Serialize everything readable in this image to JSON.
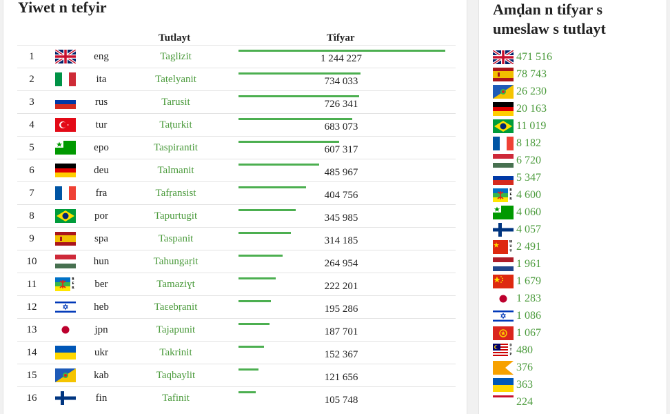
{
  "main": {
    "title": "Yiwet n tefyir",
    "headers": {
      "language": "Tutlayt",
      "count": "Tifyar"
    },
    "rows": [
      {
        "rank": "1",
        "flag": "uk-flag",
        "code": "eng",
        "name": "Taglizit",
        "count": "1 244 227",
        "value": 1244227
      },
      {
        "rank": "2",
        "flag": "italy-flag",
        "code": "ita",
        "name": "Taṭelyanit",
        "count": "734 033",
        "value": 734033
      },
      {
        "rank": "3",
        "flag": "russia-flag",
        "code": "rus",
        "name": "Tarusit",
        "count": "726 341",
        "value": 726341
      },
      {
        "rank": "4",
        "flag": "turkey-flag",
        "code": "tur",
        "name": "Taṭurkit",
        "count": "683 073",
        "value": 683073
      },
      {
        "rank": "5",
        "flag": "esperanto-flag",
        "code": "epo",
        "name": "Taspirantit",
        "count": "607 317",
        "value": 607317
      },
      {
        "rank": "6",
        "flag": "germany-flag",
        "code": "deu",
        "name": "Talmanit",
        "count": "485 967",
        "value": 485967
      },
      {
        "rank": "7",
        "flag": "france-flag",
        "code": "fra",
        "name": "Tafṛansist",
        "count": "404 756",
        "value": 404756
      },
      {
        "rank": "8",
        "flag": "brazil-flag",
        "code": "por",
        "name": "Tapurtugit",
        "count": "345 985",
        "value": 345985
      },
      {
        "rank": "9",
        "flag": "spain-flag",
        "code": "spa",
        "name": "Taspanit",
        "count": "314 185",
        "value": 314185
      },
      {
        "rank": "10",
        "flag": "hungary-flag",
        "code": "hun",
        "name": "Tahungaṛit",
        "count": "264 954",
        "value": 264954
      },
      {
        "rank": "11",
        "flag": "berber-flag",
        "code": "ber",
        "name": "Tamaziɣt",
        "count": "222 201",
        "value": 222201
      },
      {
        "rank": "12",
        "flag": "israel-flag",
        "code": "heb",
        "name": "Taɛebṛanit",
        "count": "195 286",
        "value": 195286
      },
      {
        "rank": "13",
        "flag": "japan-flag",
        "code": "jpn",
        "name": "Tajapunit",
        "count": "187 701",
        "value": 187701
      },
      {
        "rank": "14",
        "flag": "ukraine-flag",
        "code": "ukr",
        "name": "Takrinit",
        "count": "152 367",
        "value": 152367
      },
      {
        "rank": "15",
        "flag": "kabyle-flag",
        "code": "kab",
        "name": "Taqbaylit",
        "count": "121 656",
        "value": 121656
      },
      {
        "rank": "16",
        "flag": "finland-flag",
        "code": "fin",
        "name": "Tafinit",
        "count": "105 748",
        "value": 105748
      }
    ]
  },
  "sidebar": {
    "title": "Amḍan n tifyar s umeslaw s tutlayt",
    "items": [
      {
        "flag": "uk-flag",
        "count": "471 516"
      },
      {
        "flag": "spain-flag",
        "count": "78 743"
      },
      {
        "flag": "kabyle-flag",
        "count": "26 230"
      },
      {
        "flag": "germany-flag",
        "count": "20 163"
      },
      {
        "flag": "brazil-flag",
        "count": "11 019"
      },
      {
        "flag": "france-flag",
        "count": "8 182"
      },
      {
        "flag": "hungary-flag",
        "count": "6 720"
      },
      {
        "flag": "russia-flag",
        "count": "5 347"
      },
      {
        "flag": "berber-flag",
        "count": "4 600"
      },
      {
        "flag": "esperanto-flag",
        "count": "4 060"
      },
      {
        "flag": "finland-flag",
        "count": "4 057"
      },
      {
        "flag": "wuu-flag",
        "count": "2 491"
      },
      {
        "flag": "netherlands-flag",
        "count": "1 961"
      },
      {
        "flag": "china-flag",
        "count": "1 679"
      },
      {
        "flag": "japan-flag",
        "count": "1 283"
      },
      {
        "flag": "israel-flag",
        "count": "1 086"
      },
      {
        "flag": "vietnam-flag",
        "count": "1 067"
      },
      {
        "flag": "dtp-flag",
        "count": "480"
      },
      {
        "flag": "orange-flag",
        "count": "376"
      },
      {
        "flag": "ukraine-flag",
        "count": "363"
      },
      {
        "flag": "partial-flag",
        "count": "224"
      }
    ]
  },
  "colors": {
    "accent": "#4caf50",
    "link": "#4a9a3b"
  }
}
